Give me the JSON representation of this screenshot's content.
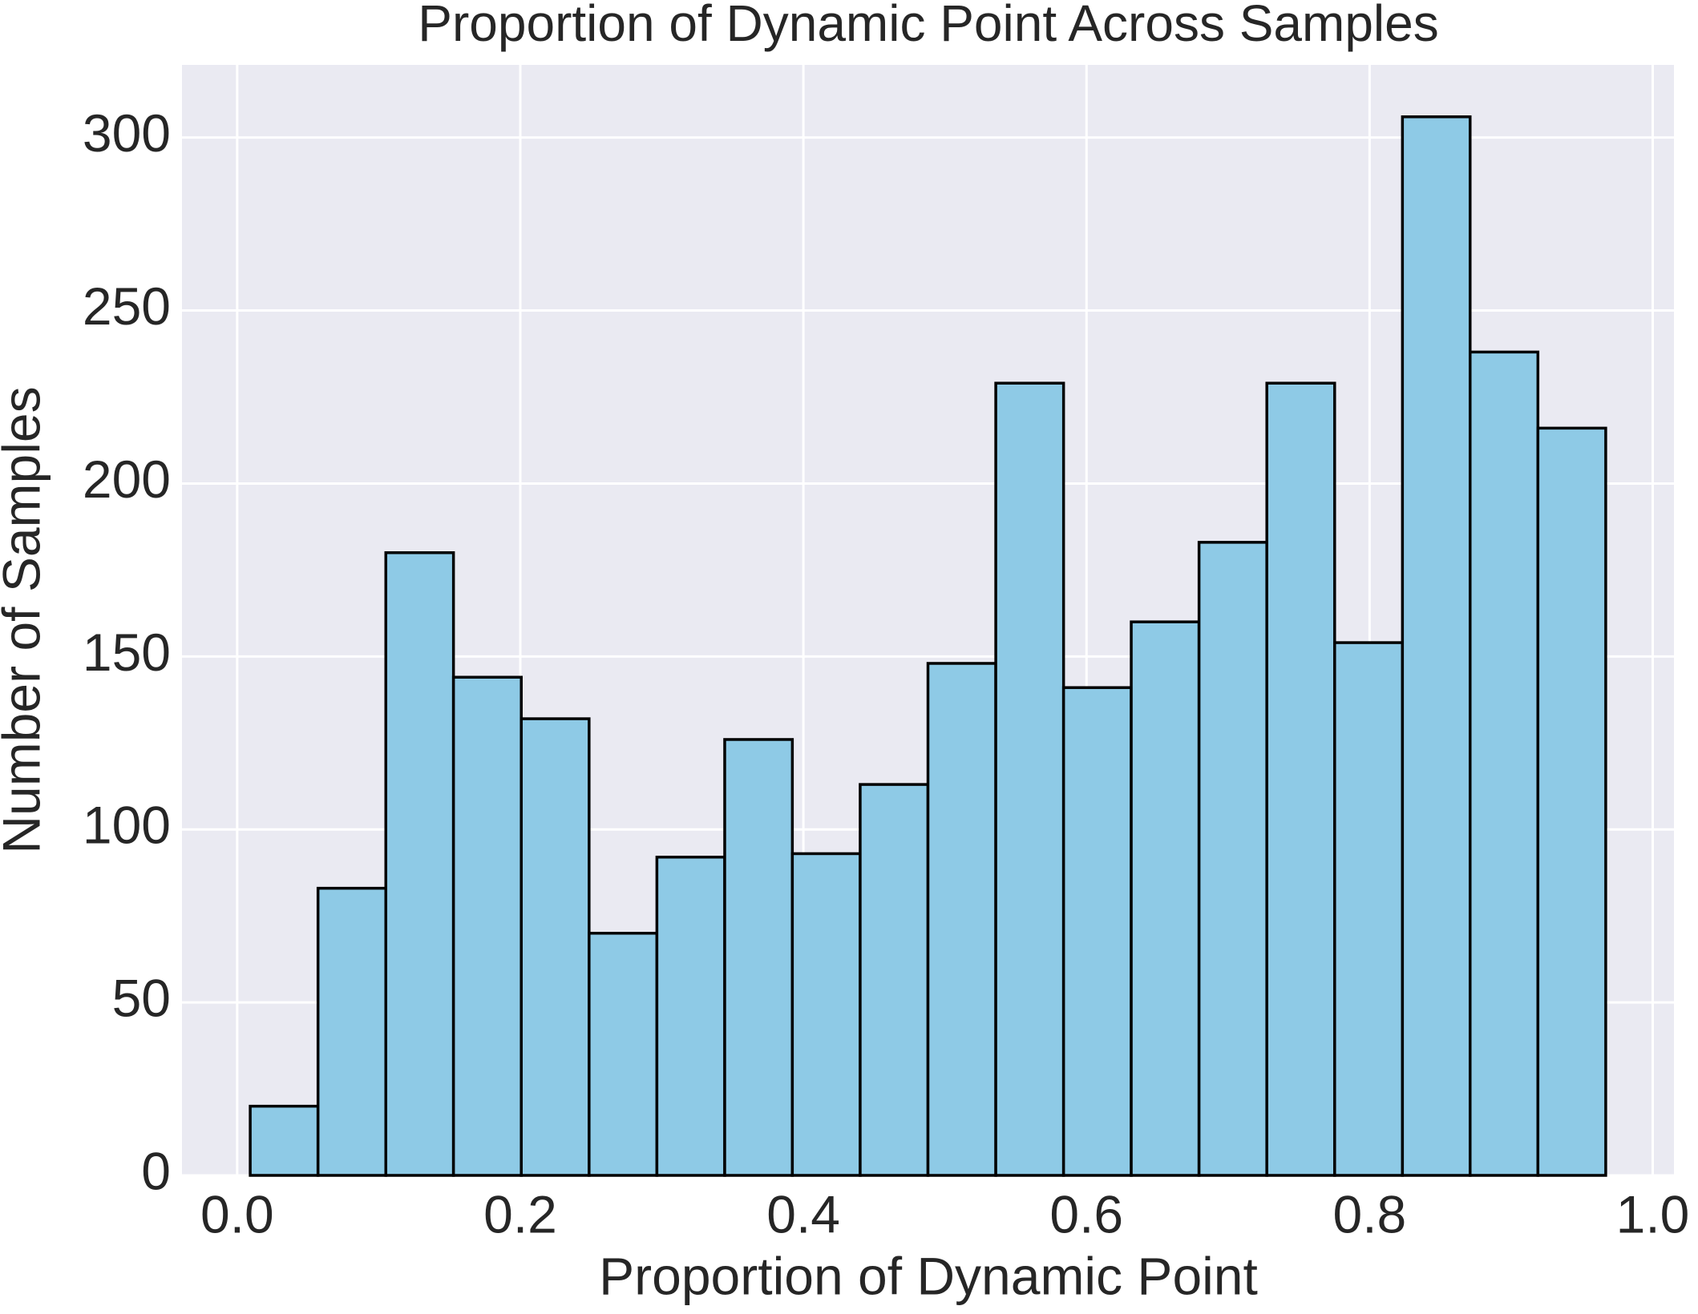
{
  "chart_data": {
    "type": "histogram",
    "title": "Proportion of Dynamic Point Across Samples",
    "x_label": "Proportion of Dynamic Point",
    "y_label": "Number of Samples",
    "bins": [
      0.0092,
      0.0571,
      0.105,
      0.1528,
      0.2007,
      0.2486,
      0.2965,
      0.3444,
      0.3922,
      0.4401,
      0.488,
      0.5359,
      0.5838,
      0.6316,
      0.6795,
      0.7274,
      0.7753,
      0.8232,
      0.871,
      0.9189,
      0.9668
    ],
    "values": [
      20,
      83,
      180,
      144,
      132,
      70,
      92,
      126,
      93,
      113,
      148,
      229,
      141,
      160,
      183,
      229,
      154,
      306,
      238,
      216
    ],
    "color": "#8ecae6",
    "edgecolor": "#000000",
    "background": "#eaeaf2",
    "grid": true,
    "xlim": [
      -0.039,
      1.015
    ],
    "ylim": [
      0,
      321
    ],
    "xticks": [
      {
        "value": 0,
        "label": "0.0"
      },
      0.2,
      0.4,
      0.6,
      0.8,
      {
        "value": 1,
        "label": "1.0"
      }
    ],
    "yticks": [
      0,
      50,
      100,
      150,
      200,
      250,
      300
    ]
  }
}
